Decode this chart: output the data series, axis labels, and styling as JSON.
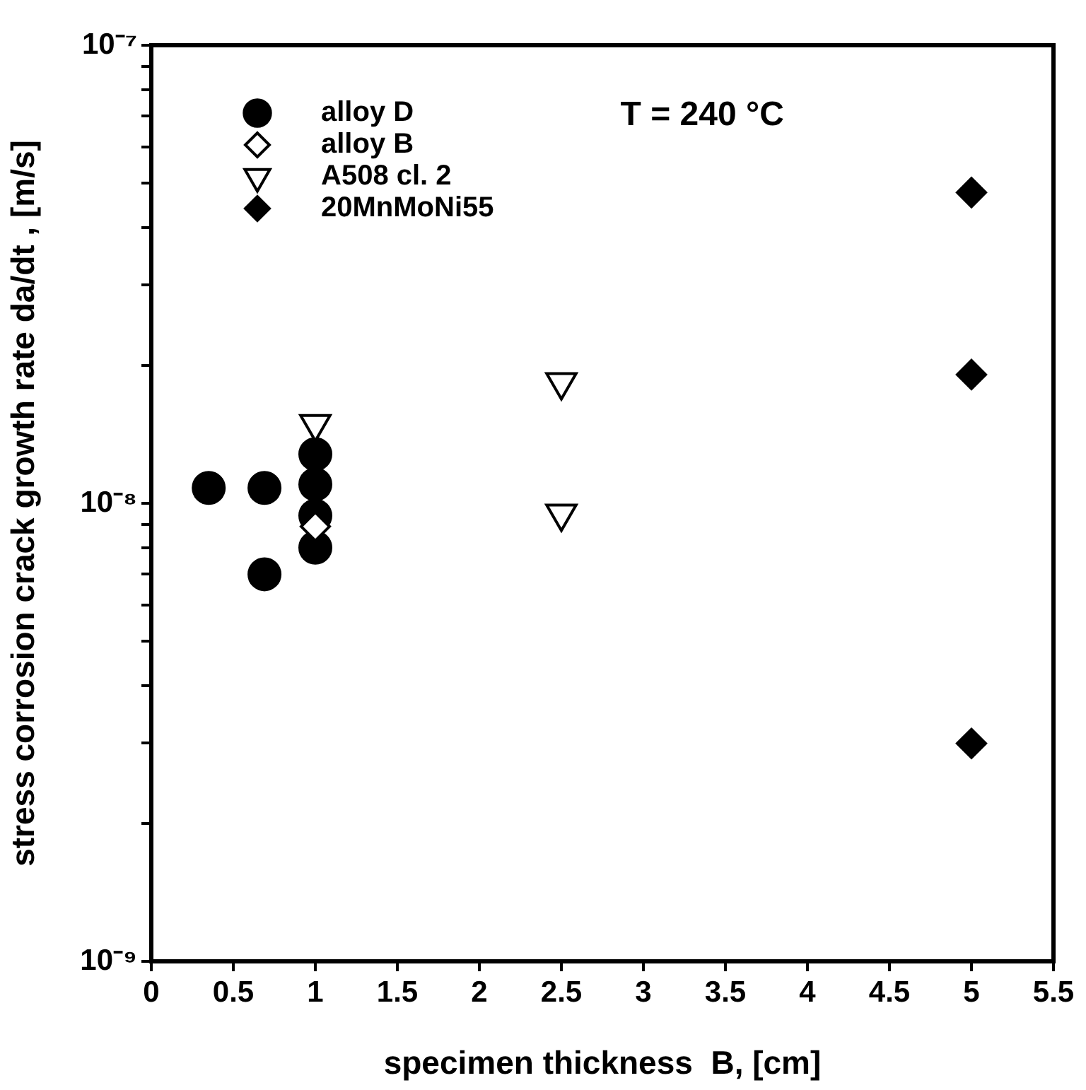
{
  "chart_data": {
    "type": "scatter",
    "xlabel": "specimen thickness  B, [cm]",
    "ylabel": "stress corrosion crack growth rate da/dt , [m/s]",
    "annotations": [
      "T = 240 °C"
    ],
    "log": "y",
    "grid": false,
    "legend": "top left",
    "xlim": [
      0,
      5.5
    ],
    "xticks": [
      0,
      0.5,
      1,
      1.5,
      2,
      2.5,
      3,
      3.5,
      4,
      4.5,
      5,
      5.5
    ],
    "ylim": [
      1e-09,
      1e-07
    ],
    "yticks": [
      {
        "value": 1e-09,
        "label": "10⁻⁹"
      },
      {
        "value": 2e-09,
        "label": null
      },
      {
        "value": 3e-09,
        "label": null
      },
      {
        "value": 4e-09,
        "label": null
      },
      {
        "value": 5e-09,
        "label": null
      },
      {
        "value": 6e-09,
        "label": null
      },
      {
        "value": 7e-09,
        "label": null
      },
      {
        "value": 8e-09,
        "label": null
      },
      {
        "value": 9e-09,
        "label": null
      },
      {
        "value": 1e-08,
        "label": "10⁻⁸"
      },
      {
        "value": 2e-08,
        "label": null
      },
      {
        "value": 3e-08,
        "label": null
      },
      {
        "value": 4e-08,
        "label": null
      },
      {
        "value": 5e-08,
        "label": null
      },
      {
        "value": 6e-08,
        "label": null
      },
      {
        "value": 7e-08,
        "label": null
      },
      {
        "value": 8e-08,
        "label": null
      },
      {
        "value": 9e-08,
        "label": null
      },
      {
        "value": 1e-07,
        "label": "10⁻⁷"
      }
    ],
    "series": [
      {
        "name": "alloy D",
        "color": "#000000",
        "marker": "circle",
        "x": [
          0.35,
          0.69,
          0.69,
          1,
          1,
          1,
          1
        ],
        "values": [
          1.08e-08,
          1.08e-08,
          7e-09,
          1.28e-08,
          1.1e-08,
          9.4e-09,
          8e-09
        ]
      },
      {
        "name": "alloy B",
        "color": "#ffffff",
        "marker": "diamond",
        "x": [
          1
        ],
        "values": [
          8.9e-09
        ]
      },
      {
        "name": "A508 cl. 2",
        "color": "#ffffff",
        "marker": "triangle",
        "x": [
          1,
          2.5,
          2.5
        ],
        "values": [
          1.49e-08,
          1.84e-08,
          9.5e-09
        ]
      },
      {
        "name": "20MnMoNi55",
        "color": "#000000",
        "marker": "diamond",
        "x": [
          5,
          5,
          5
        ],
        "values": [
          4.77e-08,
          1.91e-08,
          2.99e-09
        ]
      }
    ]
  }
}
